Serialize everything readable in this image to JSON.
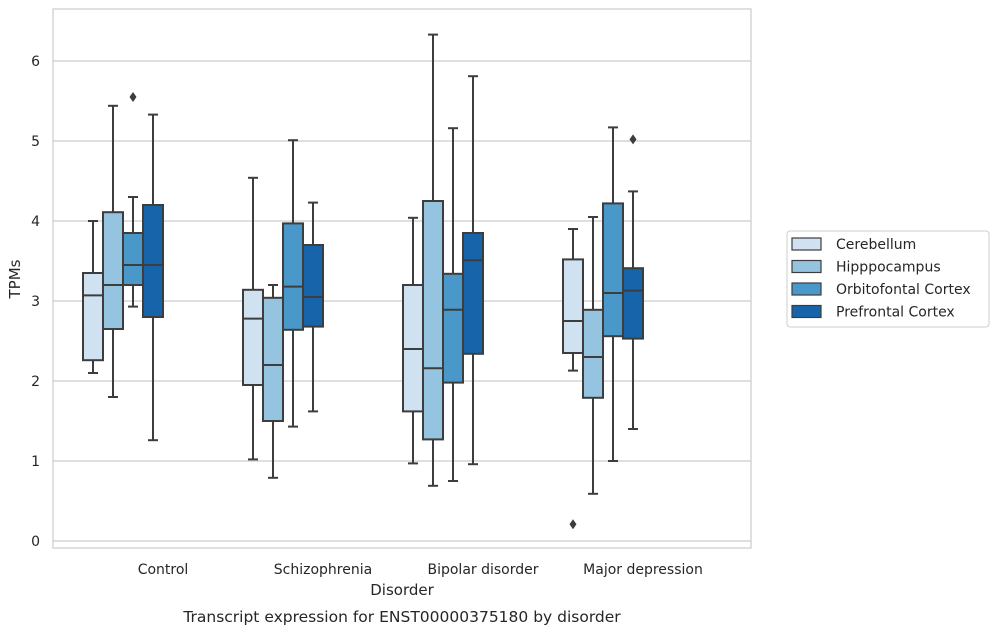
{
  "chart_data": {
    "type": "box",
    "title": "",
    "caption": "Transcript expression for ENST00000375180 by disorder",
    "xlabel": "Disorder",
    "ylabel": "TPMs",
    "ylim": [
      -0.1,
      6.6
    ],
    "yticks": [
      0,
      1,
      2,
      3,
      4,
      5,
      6
    ],
    "grid": "horizontal",
    "legend_position": "right",
    "categories": [
      "Control",
      "Schizophrenia",
      "Bipolar disorder",
      "Major depression"
    ],
    "series": [
      {
        "name": "Cerebellum",
        "color": "#d0e1f2",
        "boxes": [
          {
            "whislo": 2.1,
            "q1": 2.26,
            "med": 3.07,
            "q3": 3.35,
            "whishi": 4.0,
            "fliers": []
          },
          {
            "whislo": 1.02,
            "q1": 1.95,
            "med": 2.78,
            "q3": 3.14,
            "whishi": 4.54,
            "fliers": []
          },
          {
            "whislo": 0.97,
            "q1": 1.62,
            "med": 2.4,
            "q3": 3.2,
            "whishi": 4.04,
            "fliers": []
          },
          {
            "whislo": 2.13,
            "q1": 2.35,
            "med": 2.75,
            "q3": 3.52,
            "whishi": 3.9,
            "fliers": [
              0.21
            ]
          }
        ]
      },
      {
        "name": "Hipppocampus",
        "color": "#94c4df",
        "boxes": [
          {
            "whislo": 1.8,
            "q1": 2.65,
            "med": 3.2,
            "q3": 4.11,
            "whishi": 5.44,
            "fliers": []
          },
          {
            "whislo": 0.79,
            "q1": 1.5,
            "med": 2.2,
            "q3": 3.04,
            "whishi": 3.2,
            "fliers": []
          },
          {
            "whislo": 0.69,
            "q1": 1.27,
            "med": 2.16,
            "q3": 4.25,
            "whishi": 6.33,
            "fliers": []
          },
          {
            "whislo": 0.59,
            "q1": 1.79,
            "med": 2.3,
            "q3": 2.89,
            "whishi": 4.05,
            "fliers": []
          }
        ]
      },
      {
        "name": "Orbitofontal Cortex",
        "color": "#4a98c9",
        "boxes": [
          {
            "whislo": 2.93,
            "q1": 3.2,
            "med": 3.45,
            "q3": 3.85,
            "whishi": 4.3,
            "fliers": [
              5.55
            ]
          },
          {
            "whislo": 1.43,
            "q1": 2.64,
            "med": 3.18,
            "q3": 3.97,
            "whishi": 5.01,
            "fliers": []
          },
          {
            "whislo": 0.75,
            "q1": 1.98,
            "med": 2.89,
            "q3": 3.34,
            "whishi": 5.16,
            "fliers": []
          },
          {
            "whislo": 1.0,
            "q1": 2.56,
            "med": 3.1,
            "q3": 4.22,
            "whishi": 5.17,
            "fliers": []
          }
        ]
      },
      {
        "name": "Prefrontal Cortex",
        "color": "#1764ab",
        "boxes": [
          {
            "whislo": 1.26,
            "q1": 2.8,
            "med": 3.45,
            "q3": 4.2,
            "whishi": 5.33,
            "fliers": []
          },
          {
            "whislo": 1.62,
            "q1": 2.68,
            "med": 3.05,
            "q3": 3.7,
            "whishi": 4.23,
            "fliers": []
          },
          {
            "whislo": 0.96,
            "q1": 2.34,
            "med": 3.51,
            "q3": 3.85,
            "whishi": 5.81,
            "fliers": []
          },
          {
            "whislo": 1.4,
            "q1": 2.53,
            "med": 3.13,
            "q3": 3.41,
            "whishi": 4.37,
            "fliers": [
              5.02
            ]
          }
        ]
      }
    ]
  }
}
